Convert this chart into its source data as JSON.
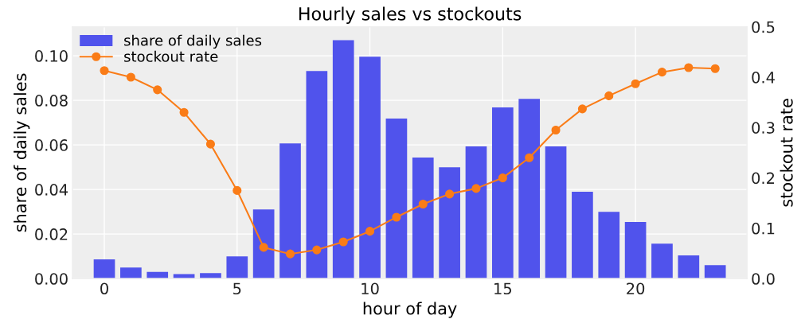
{
  "chart_data": {
    "type": "bar",
    "title": "Hourly sales vs stockouts",
    "xlabel": "hour of day",
    "ylabel": "share of daily sales",
    "y2label": "stockout rate",
    "x": [
      0,
      1,
      2,
      3,
      4,
      5,
      6,
      7,
      8,
      9,
      10,
      11,
      12,
      13,
      14,
      15,
      16,
      17,
      18,
      19,
      20,
      21,
      22,
      23
    ],
    "series": [
      {
        "name": "share of daily sales",
        "color": "#5053ec",
        "values": [
          0.0086,
          0.005,
          0.003,
          0.002,
          0.0025,
          0.01,
          0.031,
          0.0607,
          0.0932,
          0.107,
          0.0996,
          0.0718,
          0.0543,
          0.05,
          0.0593,
          0.0768,
          0.0807,
          0.0593,
          0.039,
          0.03,
          0.0254,
          0.0157,
          0.0104,
          0.006
        ]
      },
      {
        "name": "stockout rate",
        "type": "line",
        "axis": "y2",
        "color": "#fa7c17",
        "marker": "circle",
        "values": [
          0.413,
          0.4,
          0.375,
          0.33,
          0.267,
          0.175,
          0.062,
          0.049,
          0.057,
          0.073,
          0.094,
          0.122,
          0.148,
          0.168,
          0.179,
          0.2,
          0.24,
          0.295,
          0.337,
          0.363,
          0.387,
          0.41,
          0.419,
          0.417
        ]
      }
    ],
    "xlim": [
      -1.2,
      24.2
    ],
    "xticks": [
      0,
      5,
      10,
      15,
      20
    ],
    "ylim": [
      0,
      0.113
    ],
    "yticks": [
      {
        "value": 0,
        "label": "0.00"
      },
      {
        "value": 0.02,
        "label": "0.02"
      },
      {
        "value": 0.04,
        "label": "0.04"
      },
      {
        "value": 0.06,
        "label": "0.06"
      },
      {
        "value": 0.08,
        "label": "0.08"
      },
      {
        "value": 0.1,
        "label": "0.10"
      }
    ],
    "y2lim": [
      0,
      0.5
    ],
    "y2ticks": [
      {
        "value": 0,
        "label": "0.0"
      },
      {
        "value": 0.1,
        "label": "0.1"
      },
      {
        "value": 0.2,
        "label": "0.2"
      },
      {
        "value": 0.3,
        "label": "0.3"
      },
      {
        "value": 0.4,
        "label": "0.4"
      },
      {
        "value": 0.5,
        "label": "0.5"
      }
    ],
    "grid": true,
    "legend": "top left"
  }
}
